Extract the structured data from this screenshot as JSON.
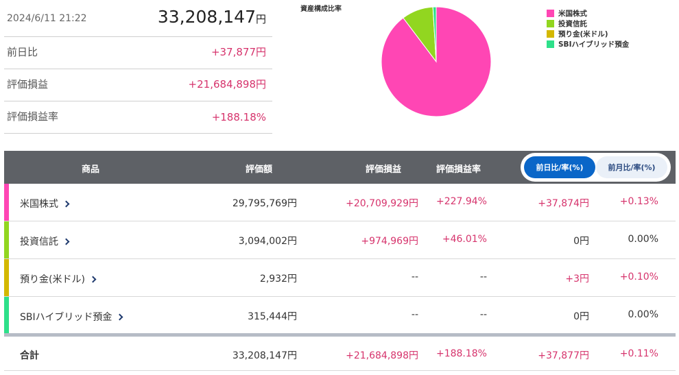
{
  "summary": {
    "datetime": "2024/6/11 21:22",
    "total_value": "33,208,147",
    "yen": "円",
    "rows": [
      {
        "label": "前日比",
        "value": "+37,877円"
      },
      {
        "label": "評価損益",
        "value": "+21,684,898円"
      },
      {
        "label": "評価損益率",
        "value": "+188.18%"
      }
    ]
  },
  "chart_data": {
    "type": "pie",
    "title": "資産構成比率",
    "labels": [
      "米国株式",
      "投資信託",
      "預り金(米ドル)",
      "SBIハイブリッド預金"
    ],
    "values": [
      29795769,
      3094002,
      2932,
      315444
    ],
    "colors": [
      "#ff46b4",
      "#92d620",
      "#d4b800",
      "#2ee08a"
    ],
    "legend": "top-right"
  },
  "table": {
    "headers": {
      "item": "商品",
      "value": "評価額",
      "pl": "評価損益",
      "pl_rate": "評価損益率"
    },
    "toggle": {
      "day": "前日比/率(%)",
      "month": "前月比/率(%)"
    },
    "rows": [
      {
        "name": "米国株式",
        "color": "#ff46b4",
        "value": "29,795,769円",
        "pl": "+20,709,929円",
        "pl_rate": "+227.94%",
        "day": "+37,874円",
        "day_rate": "+0.13%"
      },
      {
        "name": "投資信託",
        "color": "#92d620",
        "value": "3,094,002円",
        "pl": "+974,969円",
        "pl_rate": "+46.01%",
        "day": "0円",
        "day_rate": "0.00%"
      },
      {
        "name": "預り金(米ドル)",
        "color": "#d4b800",
        "value": "2,932円",
        "pl": "--",
        "pl_rate": "--",
        "day": "+3円",
        "day_rate": "+0.10%"
      },
      {
        "name": "SBIハイブリッド預金",
        "color": "#2ee08a",
        "value": "315,444円",
        "pl": "--",
        "pl_rate": "--",
        "day": "0円",
        "day_rate": "0.00%"
      }
    ],
    "total": {
      "label": "合計",
      "value": "33,208,147円",
      "pl": "+21,684,898円",
      "pl_rate": "+188.18%",
      "day": "+37,877円",
      "day_rate": "+0.11%"
    }
  }
}
